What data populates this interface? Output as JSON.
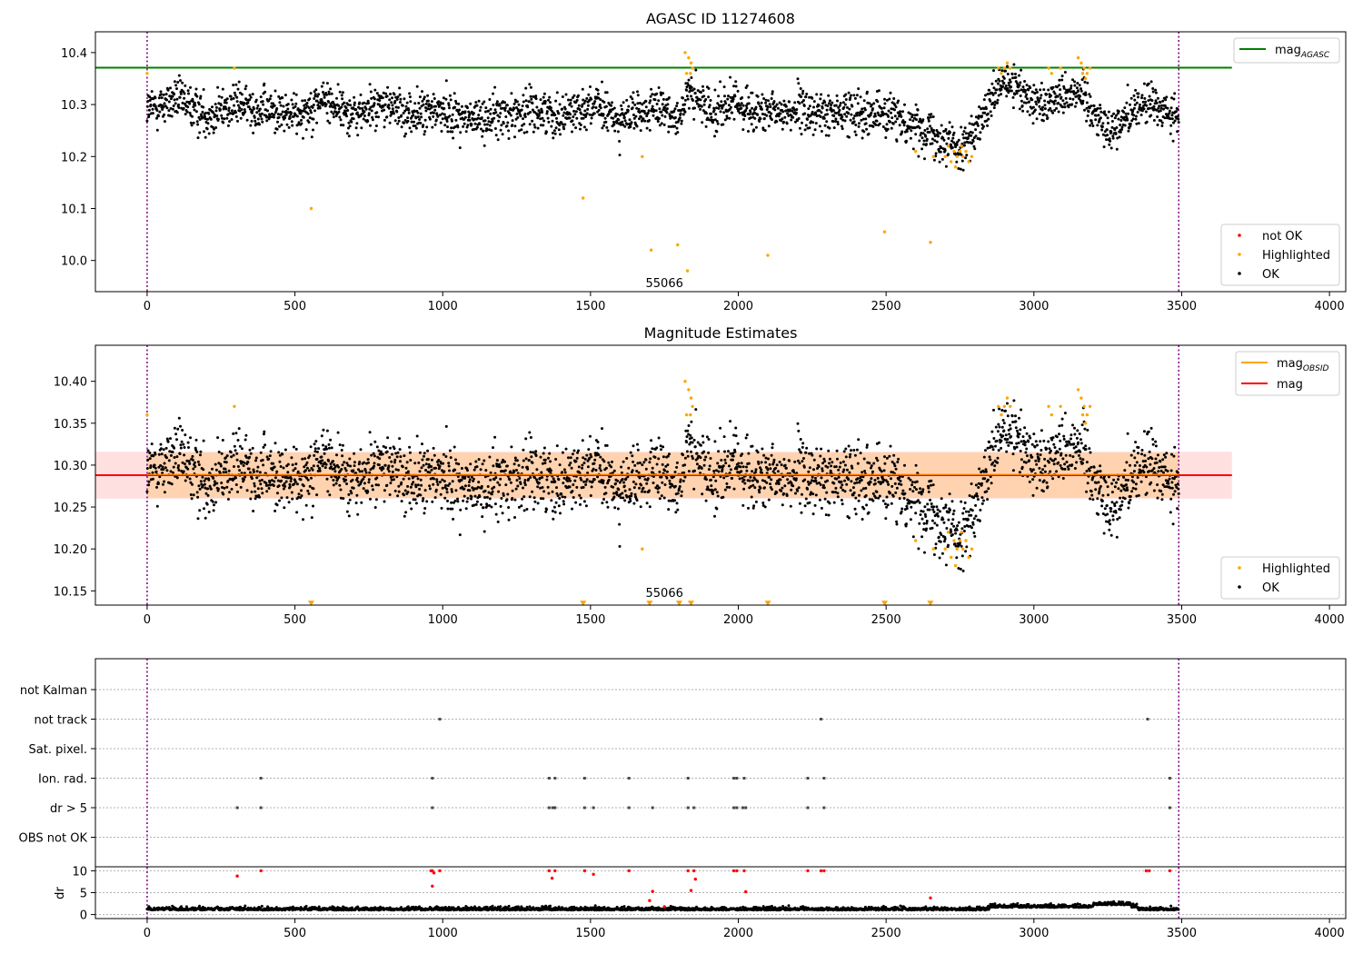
{
  "chart_data": [
    {
      "type": "scatter",
      "title": "AGASC ID 11274608",
      "x_range": [
        -175,
        4055
      ],
      "x_ticks": [
        "0",
        "500",
        "1000",
        "1500",
        "2000",
        "2500",
        "3000",
        "3500",
        "4000"
      ],
      "x_tick_values": [
        0,
        500,
        1000,
        1500,
        2000,
        2500,
        3000,
        3500,
        4000
      ],
      "y_range": [
        9.94,
        10.44
      ],
      "y_ticks": [
        "10.0",
        "10.1",
        "10.2",
        "10.3",
        "10.4"
      ],
      "y_tick_values": [
        10.0,
        10.1,
        10.2,
        10.3,
        10.4
      ],
      "hline": {
        "name": "mag_AGASC",
        "label_main": "mag",
        "label_sub": "AGASC",
        "y": 10.371,
        "x_range": [
          -175,
          3670
        ],
        "color": "#008000"
      },
      "vlines": {
        "x": [
          0,
          3490
        ],
        "color": "#800080",
        "style": "dotted"
      },
      "annotation": {
        "text": "55066",
        "x": 1750,
        "y": 9.97
      },
      "legends": [
        {
          "position": "top-right",
          "entries": [
            {
              "label": "mag",
              "sub": "AGASC",
              "color": "#008000",
              "marker": "line"
            }
          ]
        },
        {
          "position": "bottom-right",
          "entries": [
            {
              "label": "not OK",
              "color": "#ff0000",
              "marker": "dot"
            },
            {
              "label": "Highlighted",
              "color": "#ffa500",
              "marker": "dot"
            },
            {
              "label": "OK",
              "color": "#000000",
              "marker": "dot"
            }
          ]
        }
      ],
      "series": [
        {
          "name": "OK",
          "color": "#000000",
          "trend": {
            "x": [
              0,
              50,
              100,
              200,
              300,
              400,
              500,
              600,
              700,
              800,
              900,
              1000,
              1100,
              1200,
              1300,
              1400,
              1500,
              1600,
              1700,
              1800,
              1830,
              1900,
              2000,
              2100,
              2200,
              2300,
              2400,
              2500,
              2550,
              2600,
              2650,
              2700,
              2750,
              2800,
              2850,
              2900,
              2950,
              3000,
              3050,
              3100,
              3150,
              3200,
              3250,
              3300,
              3350,
              3400,
              3490
            ],
            "y": [
              10.29,
              10.3,
              10.31,
              10.28,
              10.3,
              10.29,
              10.28,
              10.31,
              10.28,
              10.3,
              10.28,
              10.29,
              10.27,
              10.28,
              10.29,
              10.28,
              10.3,
              10.27,
              10.29,
              10.28,
              10.32,
              10.29,
              10.3,
              10.28,
              10.29,
              10.28,
              10.29,
              10.28,
              10.27,
              10.26,
              10.25,
              10.23,
              10.22,
              10.24,
              10.3,
              10.34,
              10.33,
              10.3,
              10.31,
              10.32,
              10.33,
              10.29,
              10.25,
              10.27,
              10.3,
              10.3,
              10.27
            ]
          },
          "scatter_sd": 0.02
        },
        {
          "name": "Highlighted",
          "color": "#ffa500",
          "x": [
            0,
            295,
            555,
            1475,
            1675,
            1705,
            1795,
            1820,
            1825,
            1832,
            1840,
            1845,
            1838,
            1828,
            2100,
            2495,
            2600,
            2650,
            2660,
            2700,
            2710,
            2720,
            2730,
            2735,
            2740,
            2750,
            2755,
            2760,
            2770,
            2780,
            2790,
            2880,
            2890,
            2900,
            2910,
            2920,
            3050,
            3060,
            3090,
            3150,
            3160,
            3165,
            3170,
            3175,
            3180,
            3190
          ],
          "y": [
            10.36,
            10.37,
            10.1,
            10.12,
            10.2,
            10.02,
            10.03,
            10.4,
            10.36,
            10.39,
            10.38,
            10.37,
            10.36,
            9.98,
            10.01,
            10.055,
            10.21,
            10.035,
            10.2,
            10.2,
            10.22,
            10.19,
            10.21,
            10.18,
            10.2,
            10.21,
            10.22,
            10.2,
            10.21,
            10.19,
            10.2,
            10.37,
            10.36,
            10.37,
            10.38,
            10.37,
            10.37,
            10.36,
            10.37,
            10.39,
            10.38,
            10.36,
            10.37,
            10.35,
            10.36,
            10.37
          ]
        }
      ]
    },
    {
      "type": "scatter",
      "title": "Magnitude Estimates",
      "x_range": [
        -175,
        4055
      ],
      "x_ticks": [
        "0",
        "500",
        "1000",
        "1500",
        "2000",
        "2500",
        "3000",
        "3500",
        "4000"
      ],
      "x_tick_values": [
        0,
        500,
        1000,
        1500,
        2000,
        2500,
        3000,
        3500,
        4000
      ],
      "y_range": [
        10.133,
        10.443
      ],
      "y_ticks": [
        "10.15",
        "10.20",
        "10.25",
        "10.30",
        "10.35",
        "10.40"
      ],
      "y_tick_values": [
        10.15,
        10.2,
        10.25,
        10.3,
        10.35,
        10.4
      ],
      "mag_line": {
        "name": "mag",
        "y": 10.288,
        "x_range": [
          -175,
          3670
        ],
        "color": "#ff0000"
      },
      "obsid_line": {
        "name": "mag_OBSID",
        "label_main": "mag",
        "label_sub": "OBSID",
        "y": 10.289,
        "x_range": [
          0,
          3490
        ],
        "color": "#ffa500"
      },
      "bands": [
        {
          "y0": 10.26,
          "y1": 10.316,
          "x_range": [
            -175,
            3670
          ],
          "color": "#ff0000",
          "opacity": 0.12
        },
        {
          "y0": 10.261,
          "y1": 10.315,
          "x_range": [
            0,
            3490
          ],
          "color": "#ffa500",
          "opacity": 0.22
        }
      ],
      "vlines": {
        "x": [
          0,
          3490
        ],
        "color": "#800080",
        "style": "dotted"
      },
      "annotation": {
        "text": "55066",
        "x": 1750,
        "y": 10.145
      },
      "low_markers": {
        "x": [
          555,
          1475,
          1700,
          1800,
          1840,
          2100,
          2495,
          2650
        ],
        "y": 10.135,
        "color": "#ffa500"
      },
      "legends": [
        {
          "position": "top-right",
          "entries": [
            {
              "label": "mag",
              "sub": "OBSID",
              "color": "#ffa500",
              "marker": "line"
            },
            {
              "label": "mag",
              "sub": "",
              "color": "#ff0000",
              "marker": "line"
            }
          ]
        },
        {
          "position": "bottom-right",
          "entries": [
            {
              "label": "Highlighted",
              "color": "#ffa500",
              "marker": "dot"
            },
            {
              "label": "OK",
              "color": "#000000",
              "marker": "dot"
            }
          ]
        }
      ]
    },
    {
      "type": "scatter",
      "flags": {
        "categories": [
          "not Kalman",
          "not track",
          "Sat. pixel.",
          "Ion. rad.",
          "dr > 5",
          "OBS not OK"
        ],
        "points": [
          {
            "flag": "not track",
            "x": [
              990,
              2280,
              3385
            ]
          },
          {
            "flag": "Ion. rad.",
            "x": [
              385,
              965,
              1360,
              1380,
              1480,
              1630,
              1830,
              1985,
              1995,
              2020,
              2235,
              2290,
              3460
            ]
          },
          {
            "flag": "dr > 5",
            "x": [
              305,
              385,
              965,
              1360,
              1372,
              1380,
              1480,
              1510,
              1630,
              1710,
              1830,
              1850,
              1985,
              1995,
              2015,
              2025,
              2235,
              2290,
              3460
            ]
          }
        ]
      },
      "dr_panel": {
        "ylabel": "dr",
        "y_ticks": [
          "0",
          "5",
          "10"
        ],
        "y_tick_values": [
          0,
          5,
          10
        ],
        "y_range": [
          -0.5,
          10.5
        ],
        "baseline_dr": 1.0,
        "high_dr": {
          "color": "#ff0000",
          "x": [
            305,
            385,
            960,
            965,
            970,
            990,
            965,
            1360,
            1370,
            1380,
            1480,
            1510,
            1630,
            1700,
            1710,
            1750,
            1830,
            1840,
            1850,
            1855,
            1985,
            1995,
            2020,
            2025,
            2235,
            2280,
            2290,
            2650,
            3380,
            3390,
            3460
          ],
          "y": [
            8.8,
            10,
            10,
            10,
            9.5,
            10,
            6.5,
            10,
            8.3,
            10,
            10,
            9.2,
            10,
            3.2,
            5.3,
            1.8,
            10,
            5.5,
            10,
            8.1,
            10,
            10,
            10,
            5.2,
            10,
            10,
            10,
            3.8,
            10,
            10,
            10
          ]
        }
      },
      "x_range": [
        -175,
        4055
      ],
      "x_ticks": [
        "0",
        "500",
        "1000",
        "1500",
        "2000",
        "2500",
        "3000",
        "3500",
        "4000"
      ],
      "x_tick_values": [
        0,
        500,
        1000,
        1500,
        2000,
        2500,
        3000,
        3500,
        4000
      ],
      "vlines": {
        "x": [
          0,
          3490
        ],
        "color": "#800080",
        "style": "dotted"
      }
    }
  ]
}
